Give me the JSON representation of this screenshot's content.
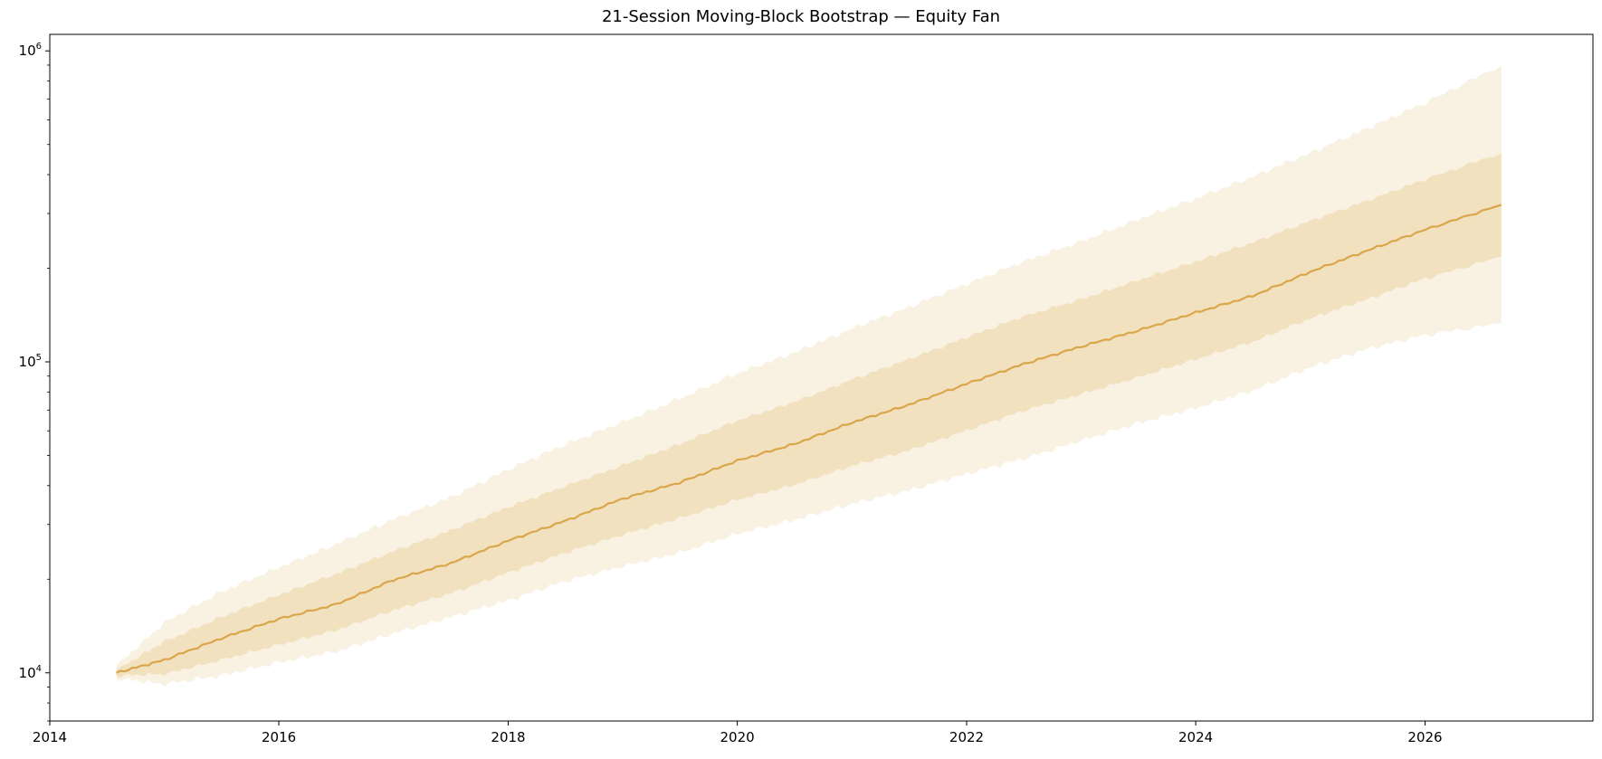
{
  "chart_data": {
    "type": "area",
    "title": "21-Session Moving-Block Bootstrap — Equity Fan",
    "xlabel": "",
    "ylabel": "",
    "x_axis": {
      "type": "date",
      "range": [
        "2014-01-01",
        "2027-06-20"
      ],
      "ticks": [
        "2014",
        "2016",
        "2018",
        "2020",
        "2022",
        "2024",
        "2026"
      ]
    },
    "y_axis": {
      "scale": "log",
      "range": [
        7000,
        1130000
      ],
      "major_ticks": [
        10000,
        100000,
        1000000
      ],
      "major_tick_labels": [
        {
          "base": "10",
          "exp": "4"
        },
        {
          "base": "10",
          "exp": "5"
        },
        {
          "base": "10",
          "exp": "6"
        }
      ]
    },
    "grid": false,
    "legend": "none",
    "colors": {
      "line": "#dba64a",
      "inner_band": "#f1e1bf",
      "outer_band": "#f9f2e3",
      "axes": "#000000"
    },
    "x": [
      "2014-08-01",
      "2015-01-01",
      "2015-07-01",
      "2016-01-01",
      "2016-07-01",
      "2017-01-01",
      "2017-07-01",
      "2018-01-01",
      "2018-07-01",
      "2019-01-01",
      "2019-07-01",
      "2020-01-01",
      "2020-07-01",
      "2021-01-01",
      "2021-07-01",
      "2022-01-01",
      "2022-07-01",
      "2023-01-01",
      "2023-07-01",
      "2024-01-01",
      "2024-07-01",
      "2025-01-01",
      "2025-07-01",
      "2026-01-01",
      "2026-09-01"
    ],
    "series": [
      {
        "role": "median",
        "values": [
          10000,
          11000,
          12900,
          14900,
          16600,
          19900,
          22500,
          26600,
          30800,
          36300,
          40900,
          48100,
          54400,
          63800,
          72800,
          85000,
          98400,
          112000,
          126000,
          144000,
          163000,
          195000,
          228000,
          266000,
          320000
        ]
      },
      {
        "role": "inner_band_upper",
        "values": [
          10200,
          12600,
          15100,
          17800,
          20800,
          24600,
          28700,
          34100,
          39800,
          46500,
          54400,
          64700,
          74300,
          87700,
          102000,
          120000,
          140000,
          159000,
          183000,
          210000,
          242000,
          284000,
          330000,
          386000,
          470000
        ]
      },
      {
        "role": "inner_band_lower",
        "values": [
          9800,
          9900,
          11000,
          12300,
          13700,
          15900,
          18000,
          21000,
          24300,
          27800,
          31400,
          36000,
          40200,
          46300,
          51900,
          60200,
          69600,
          78800,
          89100,
          102000,
          116000,
          138000,
          159000,
          185000,
          218000
        ]
      },
      {
        "role": "outer_band_upper",
        "values": [
          10500,
          14500,
          18200,
          21800,
          25900,
          31200,
          36600,
          45100,
          54200,
          64100,
          76100,
          91900,
          107000,
          128000,
          150000,
          178000,
          210000,
          244000,
          287000,
          335000,
          394000,
          470000,
          563000,
          680000,
          900000
        ]
      },
      {
        "role": "outer_band_lower",
        "values": [
          9600,
          9200,
          9800,
          10800,
          11700,
          13400,
          15100,
          17100,
          19700,
          22000,
          24300,
          28000,
          31000,
          35000,
          38600,
          43600,
          48800,
          55800,
          63500,
          71000,
          81000,
          96000,
          110000,
          122000,
          133000
        ]
      }
    ]
  }
}
